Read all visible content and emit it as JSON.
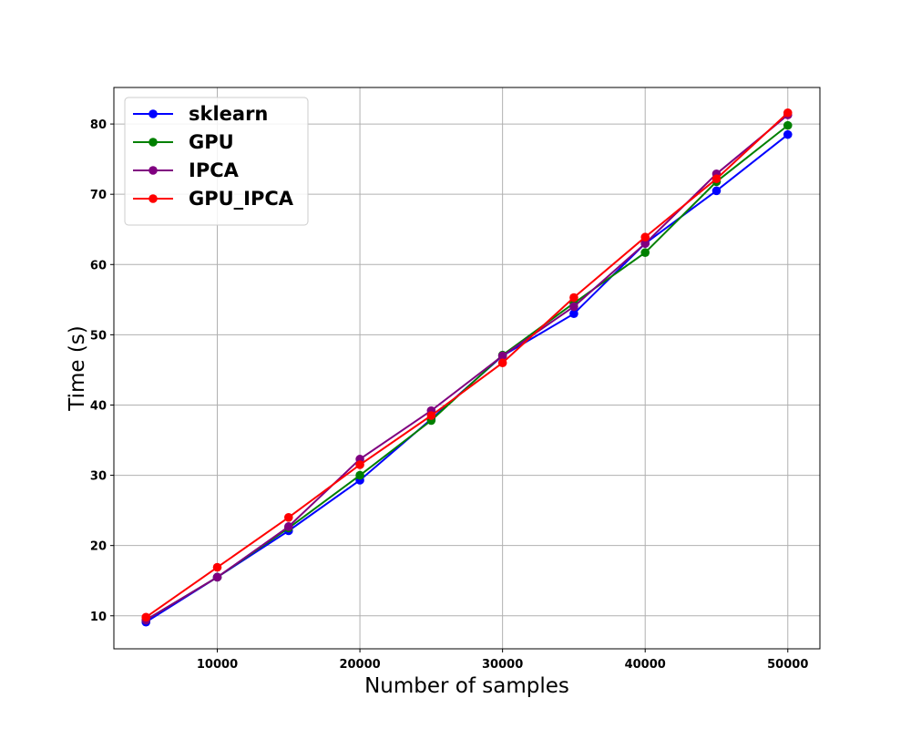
{
  "chart_data": {
    "type": "line",
    "title": "",
    "xlabel": "Number of samples",
    "ylabel": "Time (s)",
    "xlim": [
      2750,
      52250
    ],
    "ylim": [
      5.3,
      85.2
    ],
    "grid": true,
    "legend_position": "top-left",
    "x": [
      5000,
      10000,
      15000,
      20000,
      25000,
      30000,
      35000,
      40000,
      45000,
      50000
    ],
    "x_ticks": [
      10000,
      20000,
      30000,
      40000,
      50000
    ],
    "x_tick_labels": [
      "10000",
      "20000",
      "30000",
      "40000",
      "50000"
    ],
    "y_ticks": [
      10,
      20,
      30,
      40,
      50,
      60,
      70,
      80
    ],
    "y_tick_labels": [
      "10",
      "20",
      "30",
      "40",
      "50",
      "60",
      "70",
      "80"
    ],
    "series": [
      {
        "name": "sklearn",
        "color": "#0000ff",
        "values": [
          9.1,
          15.5,
          22.1,
          29.3,
          38.0,
          47.0,
          53.0,
          63.0,
          70.5,
          78.5
        ]
      },
      {
        "name": "GPU",
        "color": "#008000",
        "values": [
          9.4,
          15.5,
          22.5,
          30.0,
          37.8,
          47.1,
          54.5,
          61.7,
          71.8,
          79.8
        ]
      },
      {
        "name": "IPCA",
        "color": "#800080",
        "values": [
          9.4,
          15.5,
          22.7,
          32.3,
          39.2,
          47.0,
          54.0,
          63.0,
          72.9,
          81.3
        ]
      },
      {
        "name": "GPU_IPCA",
        "color": "#ff0000",
        "values": [
          9.8,
          16.9,
          24.0,
          31.5,
          38.5,
          46.0,
          55.3,
          63.9,
          72.2,
          81.6
        ]
      }
    ]
  }
}
